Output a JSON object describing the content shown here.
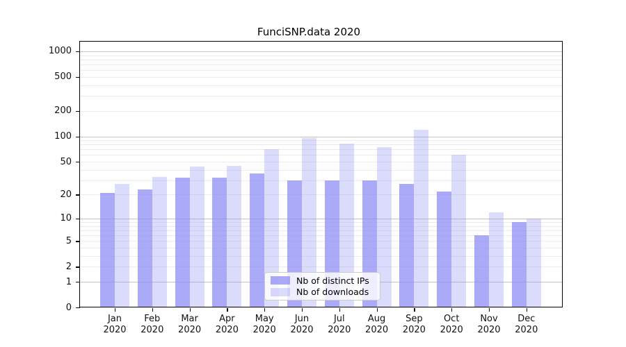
{
  "title": "FunciSNP.data 2020",
  "chart_data": {
    "type": "bar",
    "title": "FunciSNP.data 2020",
    "y_scale": "log10(1+x)",
    "ylim": [
      0,
      1300
    ],
    "grid": true,
    "legend_position": "lower center",
    "y_ticks": [
      0,
      1,
      2,
      5,
      10,
      20,
      50,
      100,
      200,
      500,
      1000
    ],
    "x_tick_labels": [
      {
        "month": "Jan",
        "year": "2020"
      },
      {
        "month": "Feb",
        "year": "2020"
      },
      {
        "month": "Mar",
        "year": "2020"
      },
      {
        "month": "Apr",
        "year": "2020"
      },
      {
        "month": "May",
        "year": "2020"
      },
      {
        "month": "Jun",
        "year": "2020"
      },
      {
        "month": "Jul",
        "year": "2020"
      },
      {
        "month": "Aug",
        "year": "2020"
      },
      {
        "month": "Sep",
        "year": "2020"
      },
      {
        "month": "Oct",
        "year": "2020"
      },
      {
        "month": "Nov",
        "year": "2020"
      },
      {
        "month": "Dec",
        "year": "2020"
      }
    ],
    "series": [
      {
        "name": "Nb of distinct IPs",
        "color": "rgba(142,142,246,0.75)",
        "color_hex": "#aaaaf8",
        "values": [
          21,
          23,
          32,
          32,
          36,
          30,
          30,
          30,
          27,
          22,
          6,
          9
        ]
      },
      {
        "name": "Nb of downloads",
        "color": "rgba(142,142,246,0.32)",
        "color_hex": "#dcdcfa",
        "values": [
          27,
          33,
          44,
          45,
          71,
          96,
          82,
          75,
          119,
          61,
          12,
          10
        ]
      }
    ]
  },
  "colors": {
    "background": "#ffffff",
    "axis": "#000000",
    "major_grid": "#c2c2c2",
    "minor_grid": "#ececec",
    "legend_border": "#cbcbcb"
  }
}
